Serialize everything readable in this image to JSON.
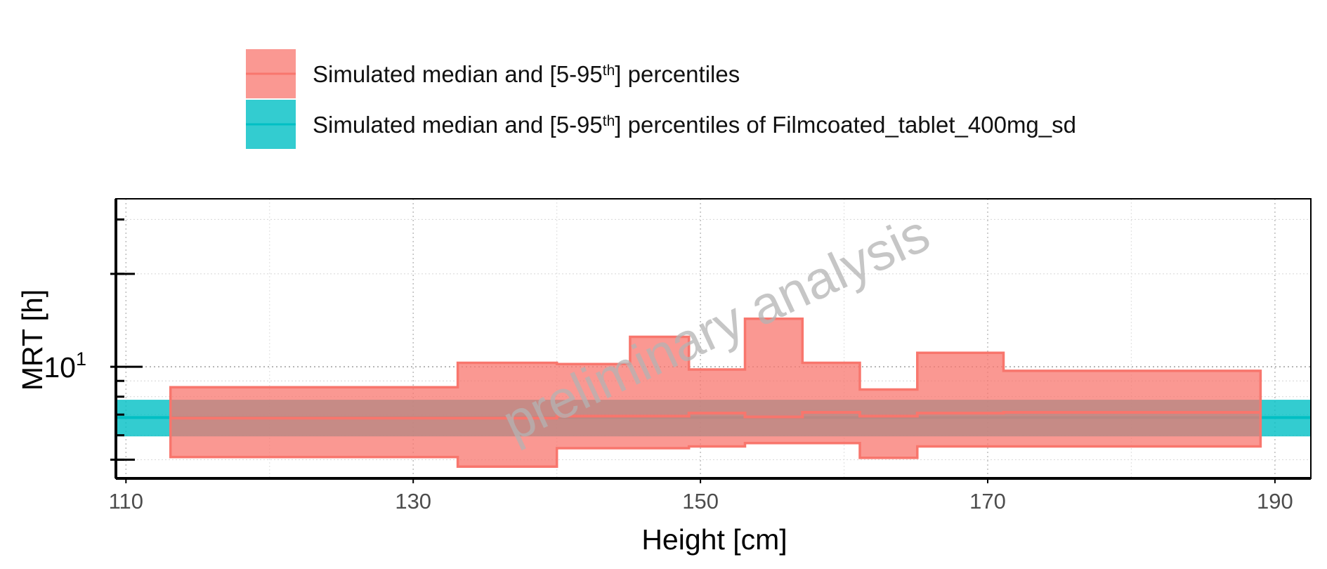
{
  "chart_data": {
    "type": "area",
    "title": "",
    "xlabel": "Height [cm]",
    "ylabel": "MRT [h]",
    "x_axis": {
      "lim": [
        109.3,
        192.5
      ],
      "ticks": [
        110,
        130,
        150,
        170,
        190
      ],
      "tick_labels": [
        "110",
        "130",
        "150",
        "170",
        "190"
      ]
    },
    "y_axis": {
      "scale": "log10",
      "lim": [
        4.35,
        35
      ],
      "labeled_tick": {
        "value": 10,
        "base": "10",
        "exponent": "1"
      }
    },
    "grid": true,
    "legend_position": "top",
    "watermark": "preliminary analysis",
    "colors": {
      "simulated": "#f8766d",
      "reference": "#00bfc4"
    },
    "series": [
      {
        "legend_prefix": "Simulated median and [5-95",
        "legend_sup": "th",
        "legend_suffix": "] percentiles",
        "bins": [
          {
            "x0": 113.1,
            "x1": 133.1,
            "low": 5.1,
            "median": 6.82,
            "high": 8.58
          },
          {
            "x0": 133.1,
            "x1": 140.0,
            "low": 4.75,
            "median": 6.82,
            "high": 10.3
          },
          {
            "x0": 140.0,
            "x1": 145.1,
            "low": 5.45,
            "median": 6.92,
            "high": 10.2
          },
          {
            "x0": 145.1,
            "x1": 149.2,
            "low": 5.45,
            "median": 6.92,
            "high": 12.5
          },
          {
            "x0": 149.2,
            "x1": 153.1,
            "low": 5.52,
            "median": 7.08,
            "high": 9.8
          },
          {
            "x0": 153.1,
            "x1": 157.1,
            "low": 5.66,
            "median": 6.88,
            "high": 14.3
          },
          {
            "x0": 157.1,
            "x1": 161.1,
            "low": 5.66,
            "median": 7.12,
            "high": 10.3
          },
          {
            "x0": 161.1,
            "x1": 165.1,
            "low": 5.07,
            "median": 6.92,
            "high": 8.44
          },
          {
            "x0": 165.1,
            "x1": 171.1,
            "low": 5.52,
            "median": 7.08,
            "high": 11.1
          },
          {
            "x0": 171.1,
            "x1": 189.0,
            "low": 5.52,
            "median": 7.12,
            "high": 9.7
          }
        ]
      },
      {
        "legend_prefix": "Simulated median and [5-95",
        "legend_sup": "th",
        "legend_suffix": "] percentiles of Filmcoated_tablet_400mg_sd",
        "band": {
          "low": 5.95,
          "median": 6.85,
          "high": 7.82
        }
      }
    ]
  }
}
